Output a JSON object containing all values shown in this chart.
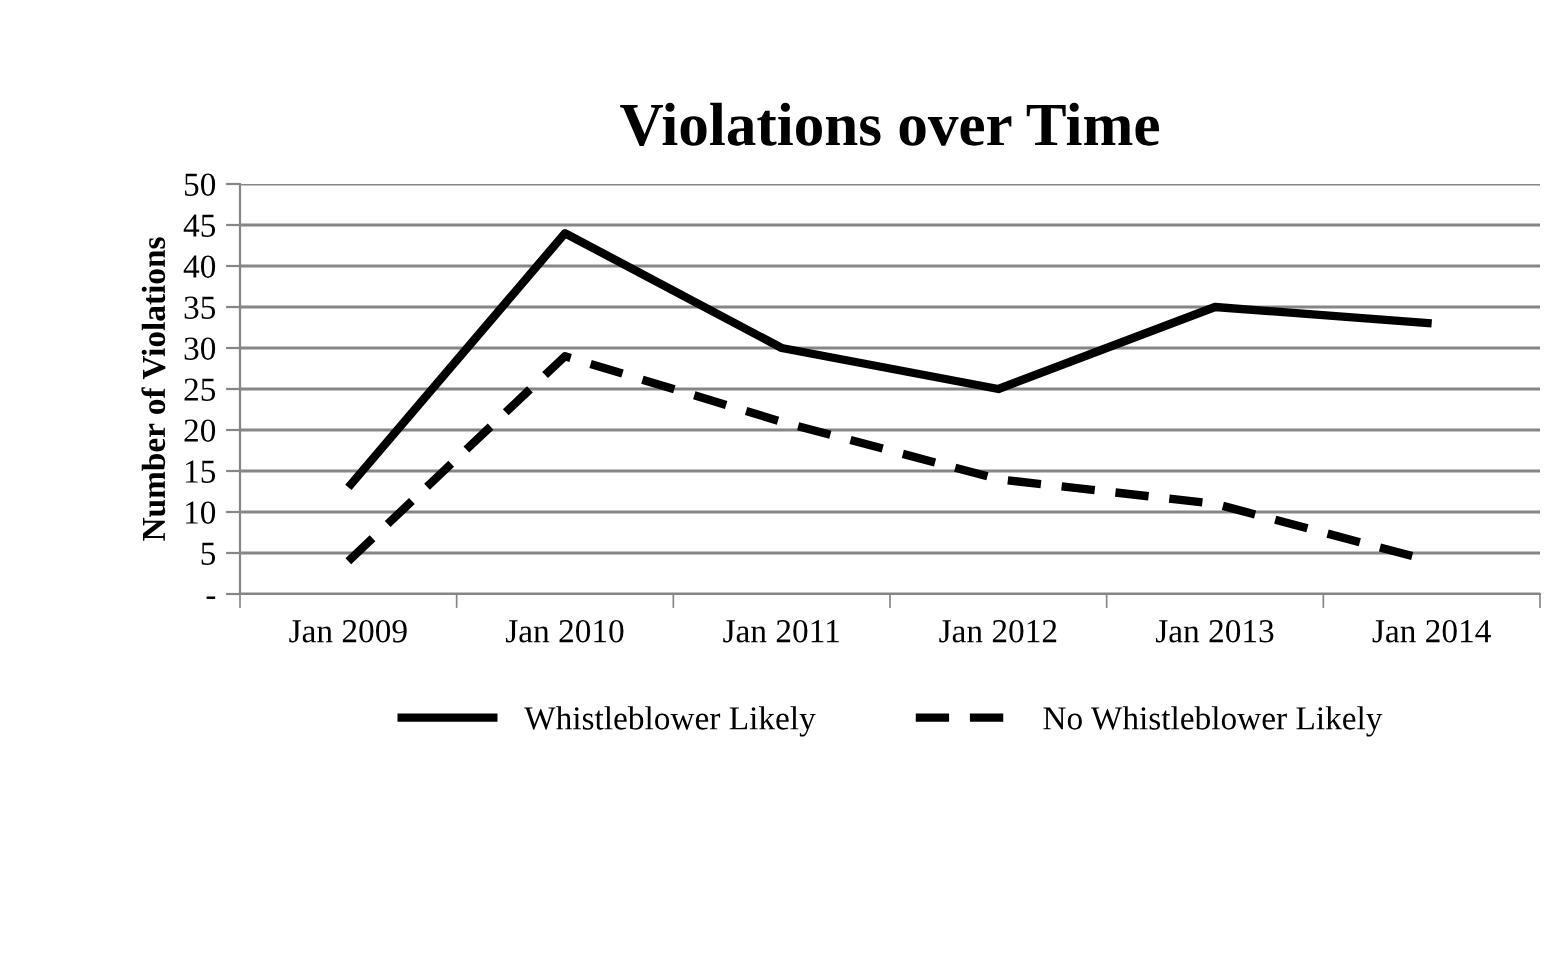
{
  "chart_data": {
    "type": "line",
    "title": "Violations over Time",
    "ylabel": "Number of Violations",
    "categories": [
      "Jan 2009",
      "Jan 2010",
      "Jan 2011",
      "Jan 2012",
      "Jan 2013",
      "Jan 2014"
    ],
    "series": [
      {
        "name": "Whistleblower Likely",
        "color": "#000000",
        "line_style": "solid",
        "values": [
          13,
          44,
          30,
          25,
          35,
          33
        ]
      },
      {
        "name": "No Whistleblower Likely",
        "color": "#000000",
        "line_style": "dashed",
        "values": [
          4,
          29,
          21,
          14,
          11,
          4
        ]
      }
    ],
    "ylim": [
      0,
      50
    ],
    "yticks": [
      {
        "value": 0,
        "label": "-"
      },
      5,
      10,
      15,
      20,
      25,
      30,
      35,
      40,
      45,
      50
    ],
    "grid": "y",
    "legend": "bottom",
    "marker": "none"
  }
}
